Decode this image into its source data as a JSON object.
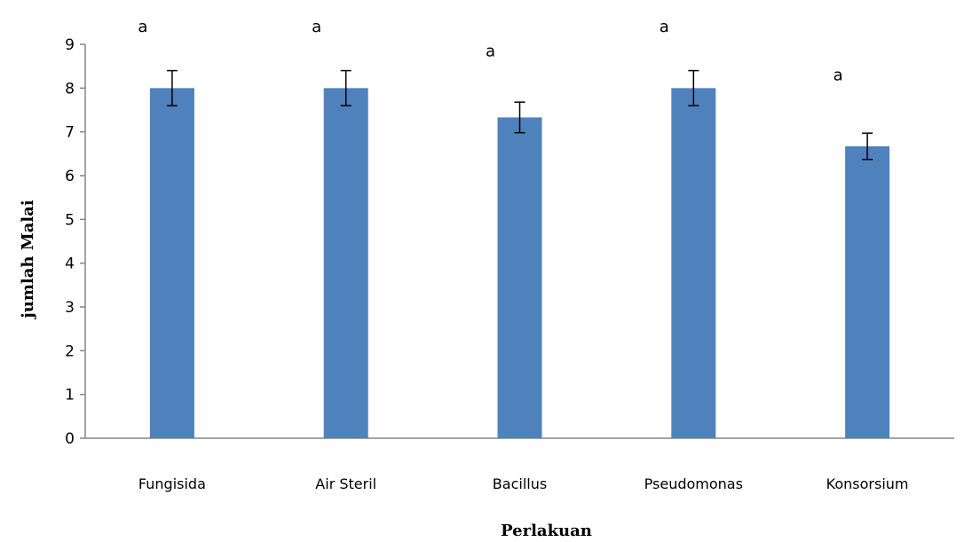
{
  "chart_data": {
    "type": "bar",
    "title": "",
    "xlabel": "Perlakuan",
    "ylabel": "jumlah Malai",
    "categories": [
      "Fungisida",
      "Air Steril",
      "Bacillus",
      "Pseudomonas",
      "Konsorsium"
    ],
    "values": [
      8.0,
      8.0,
      7.33,
      8.0,
      6.67
    ],
    "error": [
      0.4,
      0.4,
      0.35,
      0.4,
      0.3
    ],
    "annotations": [
      "a",
      "a",
      "a",
      "a",
      "a"
    ],
    "ylim": [
      0,
      9
    ],
    "yticks": [
      "0",
      "1",
      "2",
      "3",
      "4",
      "5",
      "6",
      "7",
      "8",
      "9"
    ],
    "grid": false,
    "legend": "none",
    "colors": {
      "bar": "#4f81bd",
      "axis": "#868686",
      "error_bar": "#000000"
    }
  }
}
